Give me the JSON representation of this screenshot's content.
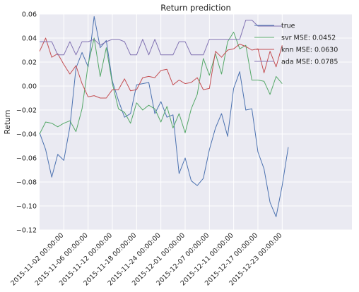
{
  "chart_data": {
    "type": "line",
    "title": "Return prediction",
    "xlabel": "",
    "ylabel": "Return",
    "ylim": [
      -0.12,
      0.06
    ],
    "yticks": [
      "0.06",
      "0.04",
      "0.02",
      "0.00",
      "−0.02",
      "−0.04",
      "−0.06",
      "−0.08",
      "−0.10",
      "−0.12"
    ],
    "ytick_values": [
      0.06,
      0.04,
      0.02,
      0.0,
      -0.02,
      -0.04,
      -0.06,
      -0.08,
      -0.1,
      -0.12
    ],
    "xtick_labels": [
      "2015-11-02 00:00:00",
      "2015-11-06 00:00:00",
      "2015-11-12 00:00:00",
      "2015-11-18 00:00:00",
      "2015-11-24 00:00:00",
      "2015-12-01 00:00:00",
      "2015-12-07 00:00:00",
      "2015-12-11 00:00:00",
      "2015-12-17 00:00:00",
      "2015-12-23 00:00:00"
    ],
    "xtick_index": [
      4,
      8,
      12,
      16,
      20,
      24,
      28,
      32,
      36,
      40
    ],
    "grid": true,
    "legend_position": "top-right",
    "series": [
      {
        "name": "true",
        "color": "#4c72b0",
        "values": [
          -0.039,
          -0.053,
          -0.076,
          -0.057,
          -0.062,
          -0.034,
          0.015,
          0.028,
          0.016,
          0.058,
          0.032,
          0.038,
          0.004,
          -0.012,
          -0.026,
          -0.023,
          0.001,
          0.002,
          0.003,
          -0.023,
          -0.013,
          -0.026,
          -0.024,
          -0.073,
          -0.06,
          -0.079,
          -0.083,
          -0.077,
          -0.053,
          -0.035,
          -0.023,
          -0.042,
          -0.002,
          0.012,
          -0.02,
          -0.019,
          -0.055,
          -0.069,
          -0.097,
          -0.109,
          -0.083,
          -0.051
        ]
      },
      {
        "name": "svr MSE: 0.0452",
        "color": "#55a868",
        "values": [
          -0.04,
          -0.03,
          -0.031,
          -0.034,
          -0.031,
          -0.029,
          -0.038,
          -0.019,
          0.018,
          0.04,
          0.008,
          0.032,
          0.002,
          -0.019,
          -0.022,
          -0.031,
          -0.014,
          -0.02,
          -0.016,
          -0.019,
          -0.03,
          -0.017,
          -0.035,
          -0.023,
          -0.039,
          -0.019,
          -0.007,
          0.023,
          0.009,
          0.027,
          0.01,
          0.037,
          0.045,
          0.031,
          0.034,
          0.005,
          0.005,
          0.004,
          -0.007,
          0.008,
          0.002
        ]
      },
      {
        "name": "knn MSE: 0.0630",
        "color": "#c44e52",
        "values": [
          0.029,
          0.04,
          0.024,
          0.027,
          0.018,
          0.01,
          0.017,
          0.002,
          -0.009,
          -0.008,
          -0.01,
          -0.01,
          -0.003,
          -0.003,
          0.006,
          -0.004,
          -0.003,
          0.007,
          0.008,
          0.007,
          0.013,
          0.014,
          0.001,
          0.005,
          0.002,
          0.003,
          0.007,
          -0.003,
          -0.002,
          0.029,
          0.024,
          0.03,
          0.031,
          0.035,
          0.033,
          0.03,
          0.031,
          0.011,
          0.029,
          0.016,
          0.034
        ]
      },
      {
        "name": "ada MSE: 0.0785",
        "color": "#8172b2",
        "values": [
          0.037,
          0.037,
          0.037,
          0.026,
          0.026,
          0.037,
          0.026,
          0.037,
          0.037,
          0.039,
          0.034,
          0.037,
          0.039,
          0.039,
          0.037,
          0.026,
          0.026,
          0.039,
          0.026,
          0.039,
          0.026,
          0.026,
          0.026,
          0.037,
          0.037,
          0.026,
          0.026,
          0.026,
          0.039,
          0.039,
          0.039,
          0.039,
          0.039,
          0.039,
          0.055,
          0.055,
          0.05,
          0.05,
          0.05,
          0.05,
          0.05
        ]
      }
    ]
  }
}
